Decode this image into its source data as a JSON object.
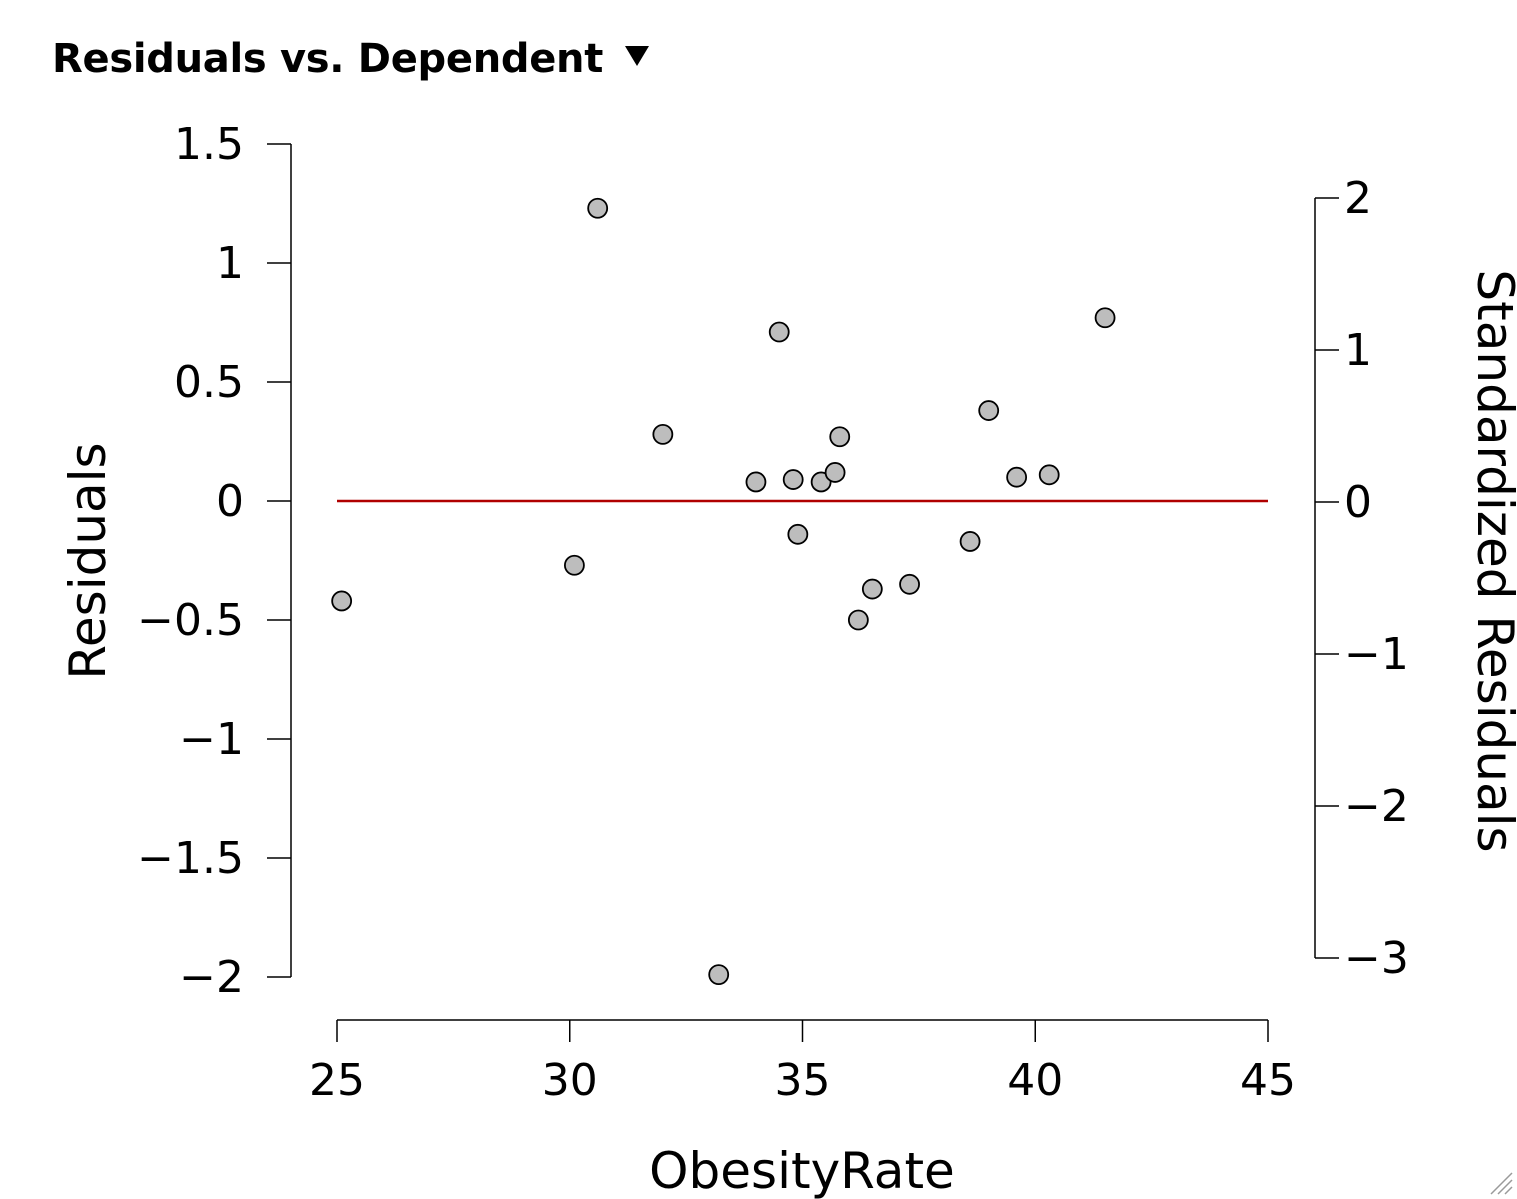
{
  "panel": {
    "title": "Residuals vs. Dependent",
    "menu_icon": "triangle-down-icon"
  },
  "colors": {
    "point_fill": "#bdbdbd",
    "point_stroke": "#000000",
    "reference_line": "#b00000",
    "axis": "#000000"
  },
  "chart_data": {
    "type": "scatter",
    "title": "",
    "xlabel": "ObesityRate",
    "ylabel": "Residuals",
    "y2label": "Standardized Residuals",
    "xlim": [
      25,
      45
    ],
    "ylim": [
      -2,
      1.5
    ],
    "y2lim": [
      -3,
      2
    ],
    "xticks": [
      "25",
      "30",
      "35",
      "40",
      "45"
    ],
    "yticks": [
      "1.5",
      "1",
      "0.5",
      "0",
      "−0.5",
      "−1",
      "−1.5",
      "−2"
    ],
    "y2ticks": [
      "2",
      "1",
      "0",
      "−1",
      "−2",
      "−3"
    ],
    "reference_line_y": 0,
    "grid": false,
    "points": [
      {
        "x": 25.1,
        "y": -0.42
      },
      {
        "x": 30.1,
        "y": -0.27
      },
      {
        "x": 30.6,
        "y": 1.23
      },
      {
        "x": 32.0,
        "y": 0.28
      },
      {
        "x": 33.2,
        "y": -1.99
      },
      {
        "x": 34.0,
        "y": 0.08
      },
      {
        "x": 34.5,
        "y": 0.71
      },
      {
        "x": 34.8,
        "y": 0.09
      },
      {
        "x": 34.9,
        "y": -0.14
      },
      {
        "x": 35.4,
        "y": 0.08
      },
      {
        "x": 35.7,
        "y": 0.12
      },
      {
        "x": 35.8,
        "y": 0.27
      },
      {
        "x": 36.2,
        "y": -0.5
      },
      {
        "x": 36.5,
        "y": -0.37
      },
      {
        "x": 37.3,
        "y": -0.35
      },
      {
        "x": 38.6,
        "y": -0.17
      },
      {
        "x": 39.0,
        "y": 0.38
      },
      {
        "x": 39.6,
        "y": 0.1
      },
      {
        "x": 40.3,
        "y": 0.11
      },
      {
        "x": 41.5,
        "y": 0.77
      }
    ]
  }
}
